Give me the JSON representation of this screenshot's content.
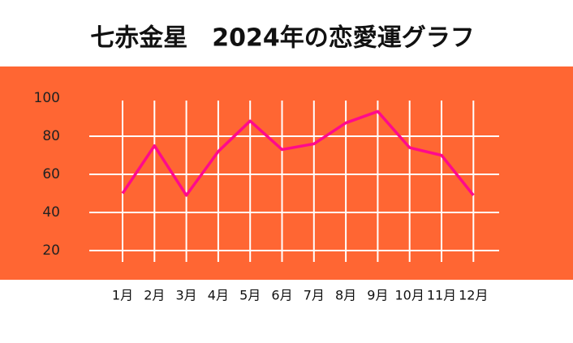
{
  "chart_data": {
    "type": "line",
    "title": "七赤金星　2024年の恋愛運グラフ",
    "categories": [
      "1月",
      "2月",
      "3月",
      "4月",
      "5月",
      "6月",
      "7月",
      "8月",
      "9月",
      "10月",
      "11月",
      "12月"
    ],
    "series": [
      {
        "color": "#ff0a8c",
        "values": [
          50,
          75,
          49,
          72,
          88,
          73,
          76,
          87,
          93,
          74,
          70,
          49
        ]
      }
    ],
    "ylim": [
      20,
      100
    ],
    "yticks": [
      20,
      40,
      60,
      80,
      100
    ],
    "grid": true,
    "background": "#ff6633"
  }
}
